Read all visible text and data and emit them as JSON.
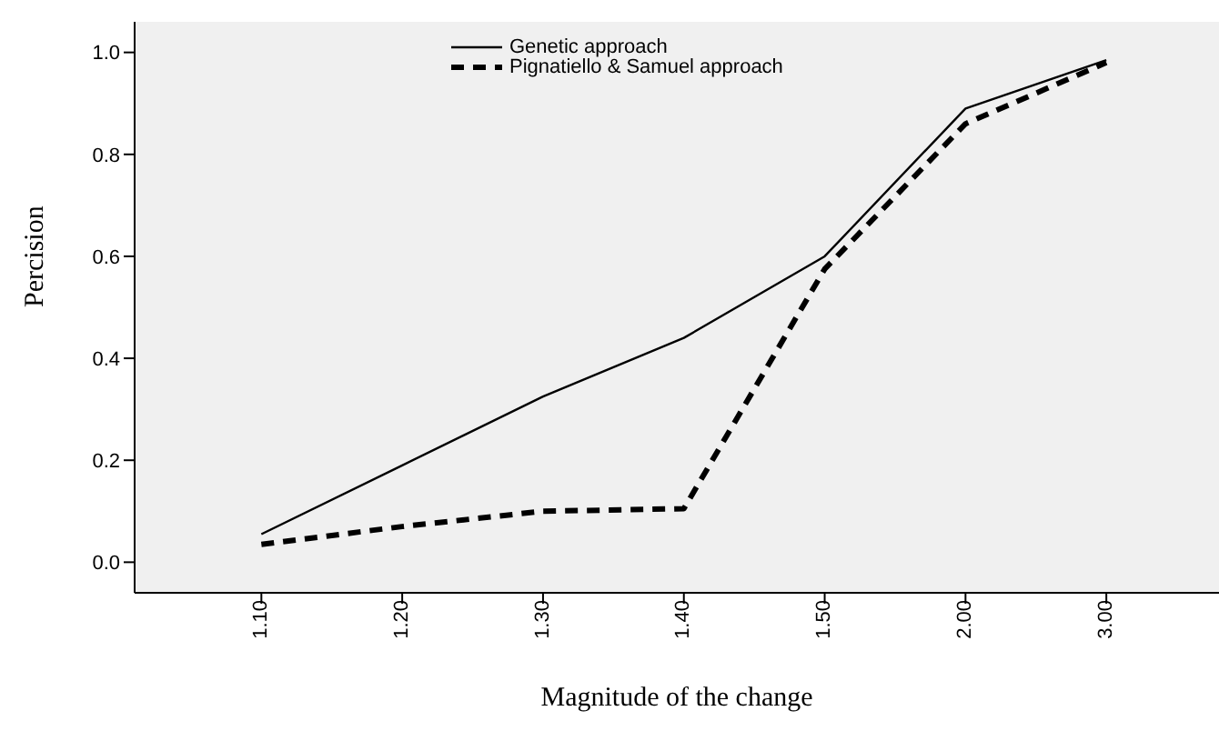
{
  "chart_data": {
    "type": "line",
    "xlabel": "Magnitude of the change",
    "ylabel": "Percision",
    "categories": [
      "1.10",
      "1.20",
      "1.30",
      "1.40",
      "1.50",
      "2.00",
      "3.00"
    ],
    "series": [
      {
        "name": "Genetic approach",
        "color": "#000000",
        "line_style": "solid",
        "values": [
          0.055,
          0.19,
          0.325,
          0.44,
          0.6,
          0.89,
          0.985
        ]
      },
      {
        "name": "Pignatiello & Samuel approach",
        "color": "#000000",
        "line_style": "dashed",
        "values": [
          0.035,
          0.07,
          0.1,
          0.105,
          0.575,
          0.86,
          0.98
        ]
      }
    ],
    "ylim": [
      -0.06,
      1.06
    ],
    "yticks": [
      {
        "value": 0,
        "label": "0.0"
      },
      0.2,
      0.4,
      0.6,
      0.8,
      {
        "value": 1,
        "label": "1.0"
      }
    ],
    "grid": false,
    "legend": "top",
    "marker": "none"
  }
}
